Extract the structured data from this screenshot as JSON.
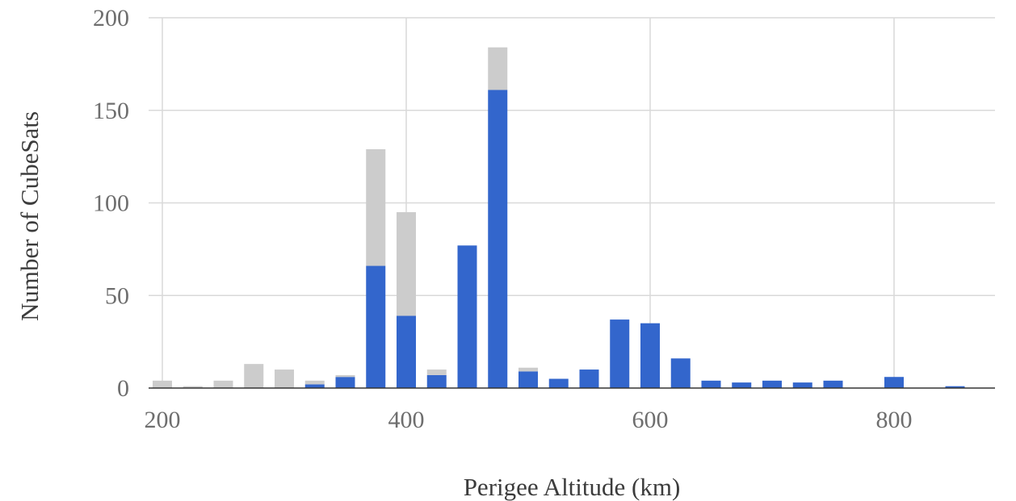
{
  "chart_data": {
    "type": "bar",
    "stacked": true,
    "xlabel": "Perigee Altitude (km)",
    "ylabel": "Number of CubeSats",
    "xlim": [
      195,
      890
    ],
    "ylim": [
      0,
      200
    ],
    "x_ticks": [
      200,
      400,
      600,
      800
    ],
    "y_ticks": [
      0,
      50,
      100,
      150,
      200
    ],
    "grid": true,
    "bin_centers": [
      200,
      225,
      250,
      275,
      300,
      325,
      350,
      375,
      400,
      425,
      450,
      475,
      500,
      525,
      550,
      575,
      600,
      625,
      650,
      675,
      700,
      725,
      750,
      775,
      800,
      825,
      850
    ],
    "series": [
      {
        "color": "#3366cc",
        "values": [
          0,
          0,
          0,
          0,
          0,
          2,
          6,
          66,
          39,
          7,
          77,
          161,
          9,
          5,
          10,
          37,
          35,
          16,
          4,
          3,
          4,
          3,
          4,
          0,
          6,
          0,
          1
        ]
      },
      {
        "color": "#cccccc",
        "values": [
          4,
          1,
          4,
          13,
          10,
          2,
          1,
          63,
          56,
          3,
          0,
          23,
          2,
          0,
          0,
          0,
          0,
          0,
          0,
          0,
          0,
          0,
          0,
          0,
          0,
          0,
          0
        ]
      }
    ]
  }
}
